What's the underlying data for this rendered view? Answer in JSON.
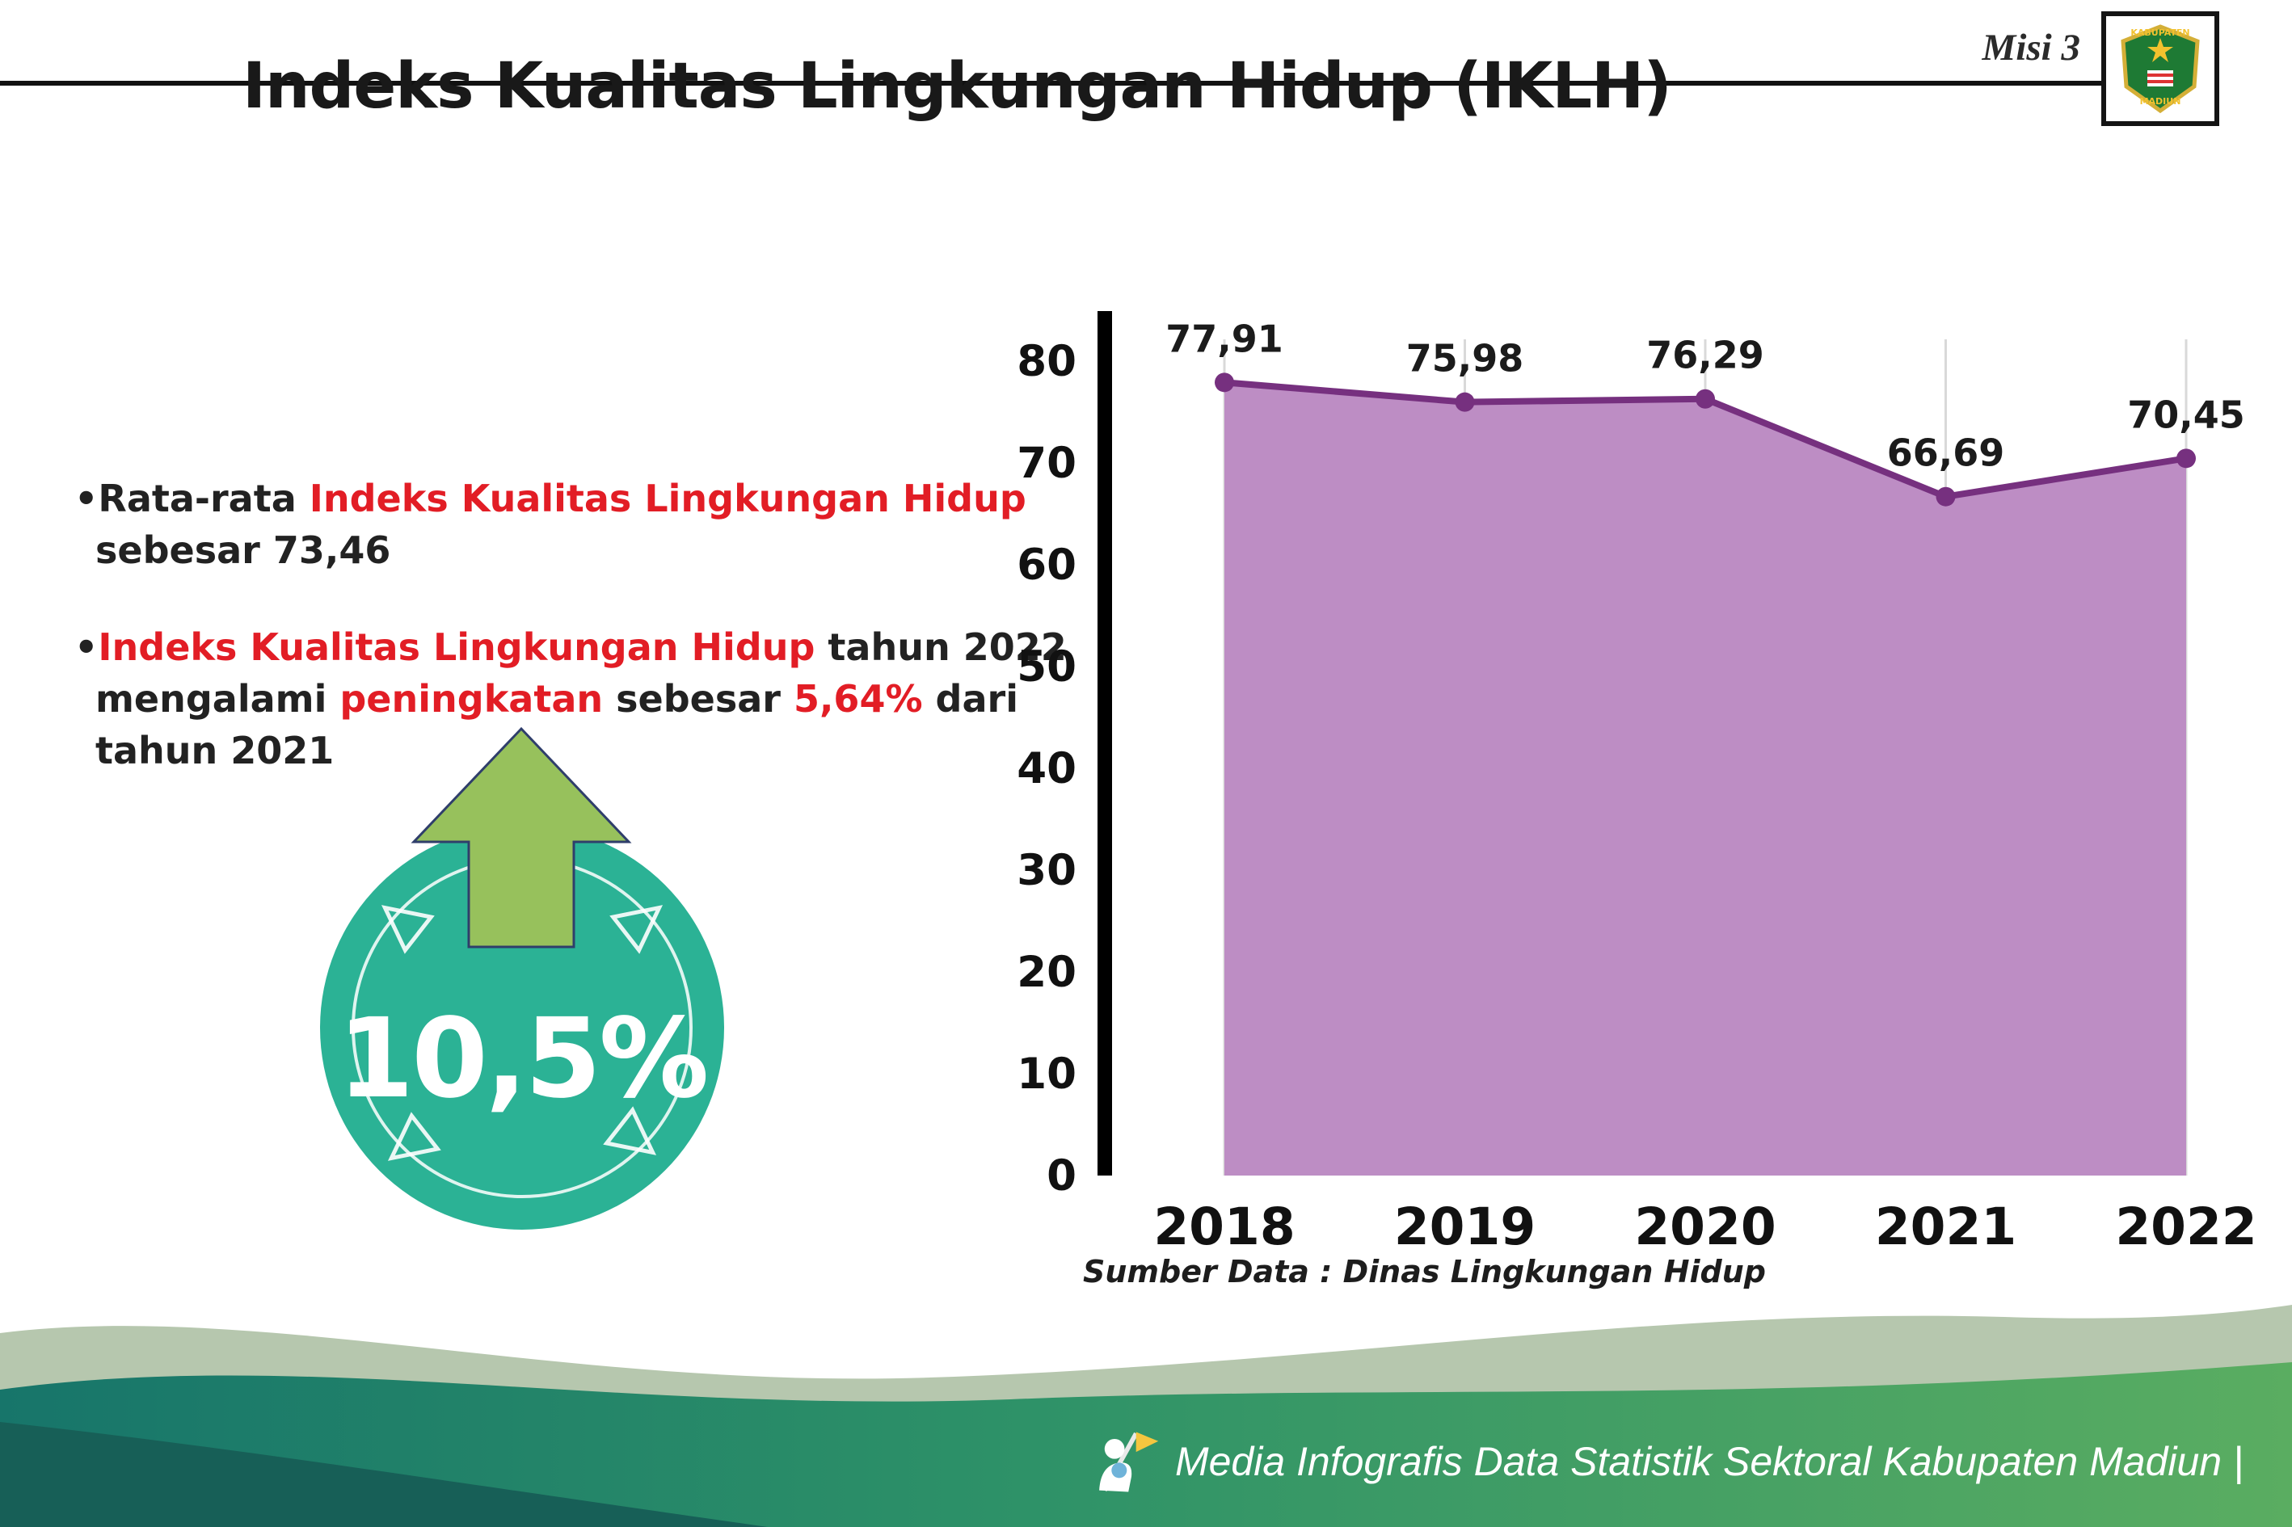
{
  "header": {
    "misi_label": "Misi 3",
    "title": "Indeks Kualitas Lingkungan Hidup (IKLH)",
    "logo": {
      "top_text": "KABUPATEN",
      "bottom_text": "MADIUN"
    }
  },
  "bullets": {
    "b1l1s1": "•Rata-rata ",
    "b1l1s2": "Indeks Kualitas Lingkungan Hidup",
    "b1l2": "sebesar 73,46",
    "b2l1s1": "•",
    "b2l1s2": "Indeks Kualitas Lingkungan Hidup",
    "b2l1s3": " tahun 2022",
    "b2l2s1": "mengalami ",
    "b2l2s2": "peningkatan",
    "b2l2s3": " sebesar ",
    "b2l2s4": "5,64%",
    "b2l2s5": " dari",
    "b2l3": "tahun 2021"
  },
  "badge": {
    "value": "10,5%"
  },
  "chart_data": {
    "type": "area",
    "title": "",
    "xlabel": "",
    "ylabel": "",
    "categories": [
      "2018",
      "2019",
      "2020",
      "2021",
      "2022"
    ],
    "values": [
      77.91,
      75.98,
      76.29,
      66.69,
      70.45
    ],
    "value_labels": [
      "77,91",
      "75,98",
      "76,29",
      "66,69",
      "70,45"
    ],
    "ylim": [
      0,
      80
    ],
    "ytick_step": 10,
    "grid": "vertical",
    "legend": false,
    "fill_color": "#bd8dc4",
    "line_color": "#76307f",
    "grid_color": "#d9d9d9",
    "source": "Sumber Data : Dinas Lingkungan Hidup"
  },
  "footer": {
    "text": "Media Infografis Data Statistik Sektoral Kabupaten Madiun |"
  },
  "colors": {
    "accent_red": "#e21d25",
    "badge_teal": "#2bb295",
    "arrow_green": "#97c15c",
    "area_fill": "#bd8dc4",
    "area_line": "#76307f",
    "wave_sage": "#b6c7ae",
    "wave_main_left": "#17756a",
    "wave_main_right": "#5aad61",
    "wave_dark": "#175f57"
  }
}
